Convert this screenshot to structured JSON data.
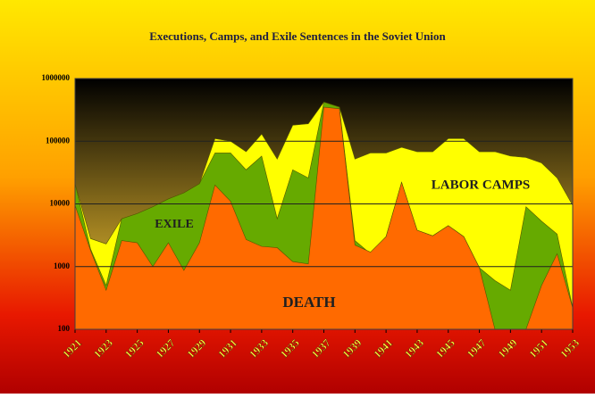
{
  "chart_data": {
    "type": "area",
    "title": "Executions, Camps, and Exile Sentences in the Soviet Union",
    "x": [
      1921,
      1922,
      1923,
      1924,
      1925,
      1926,
      1927,
      1928,
      1929,
      1930,
      1931,
      1932,
      1933,
      1934,
      1935,
      1936,
      1937,
      1938,
      1939,
      1940,
      1941,
      1942,
      1943,
      1944,
      1945,
      1946,
      1947,
      1948,
      1949,
      1950,
      1951,
      1952,
      1953
    ],
    "log_scale": true,
    "grid": true,
    "ylim": [
      100,
      1000000
    ],
    "yticks": [
      100,
      1000,
      10000,
      100000,
      1000000
    ],
    "xlim": [
      1921,
      1953
    ],
    "xticks": [
      1921,
      1923,
      1925,
      1927,
      1929,
      1931,
      1933,
      1935,
      1937,
      1939,
      1941,
      1943,
      1945,
      1947,
      1949,
      1951,
      1953
    ],
    "series": [
      {
        "name": "LABOR CAMPS",
        "color": "#ffff00",
        "values": [
          21000,
          2800,
          2300,
          5800,
          7000,
          9000,
          12000,
          15000,
          21000,
          110000,
          100000,
          68000,
          130000,
          52000,
          180000,
          190000,
          420000,
          350000,
          52000,
          65000,
          65000,
          80000,
          68000,
          68000,
          110000,
          110000,
          68000,
          68000,
          58000,
          55000,
          45000,
          26000,
          9500
        ]
      },
      {
        "name": "EXILE",
        "color": "#66aa00",
        "values": [
          21000,
          1900,
          500,
          5800,
          7000,
          9000,
          12000,
          15000,
          21000,
          65000,
          65000,
          35000,
          58000,
          5800,
          35000,
          26000,
          420000,
          350000,
          2600,
          1600,
          3000,
          22000,
          3800,
          3100,
          4500,
          3000,
          960,
          600,
          420,
          9000,
          5300,
          3300,
          220
        ]
      },
      {
        "name": "DEATH",
        "color": "#ff6a00",
        "values": [
          9500,
          1800,
          420,
          2600,
          2400,
          1000,
          2400,
          870,
          2400,
          20000,
          11000,
          2700,
          2100,
          2000,
          1200,
          1100,
          350000,
          330000,
          2200,
          1700,
          3000,
          22000,
          3800,
          3100,
          4500,
          3000,
          960,
          100,
          100,
          100,
          500,
          1600,
          220
        ]
      }
    ]
  }
}
